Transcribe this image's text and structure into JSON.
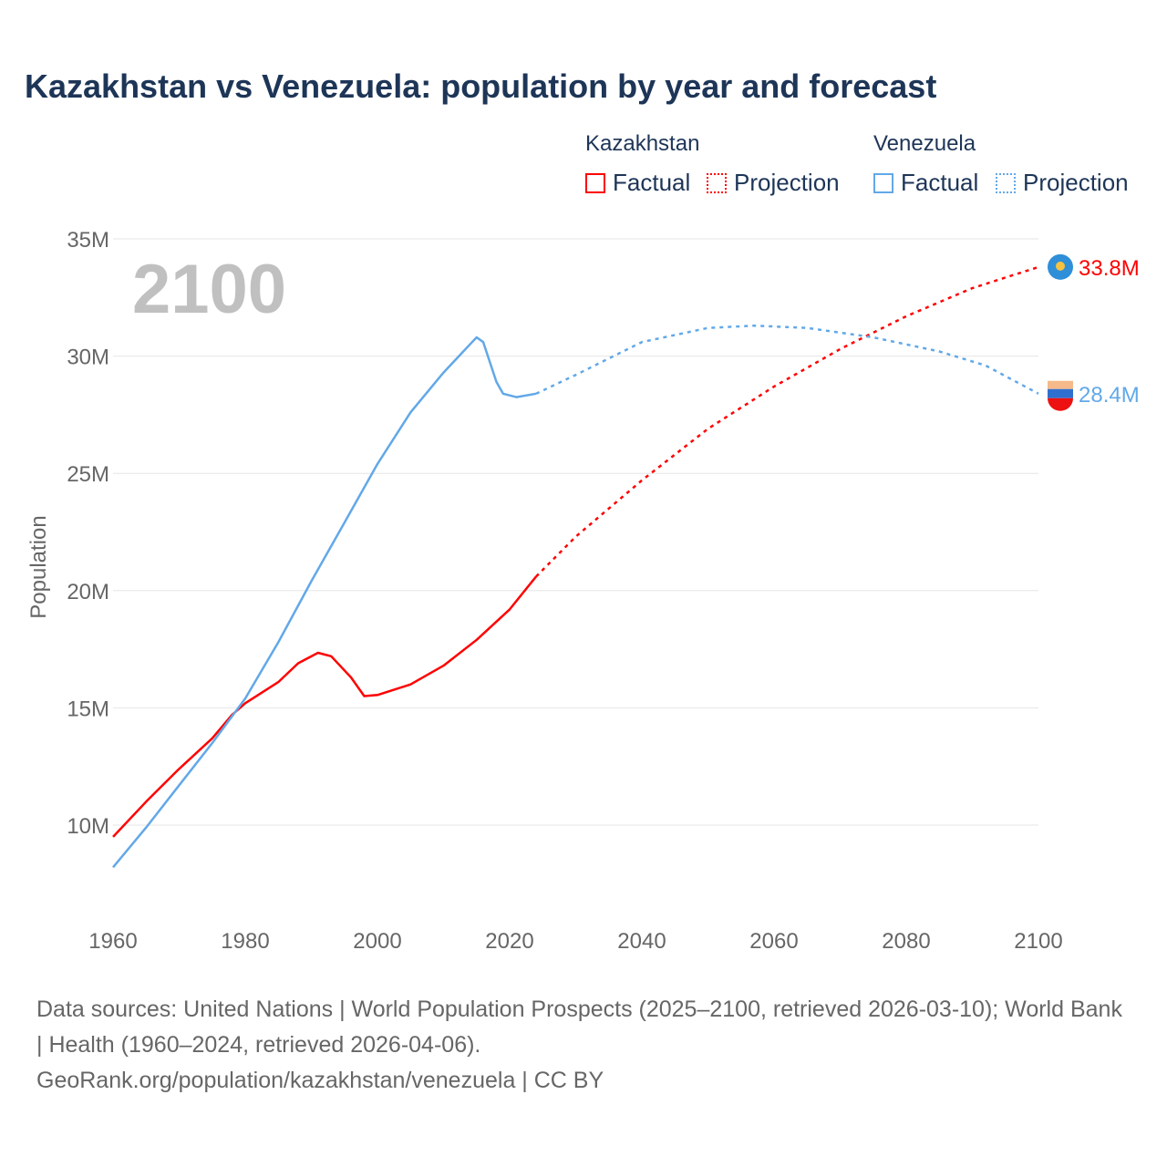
{
  "title": "Kazakhstan vs Venezuela: population by year and forecast",
  "legend": {
    "groups": [
      {
        "name": "Kazakhstan",
        "color": "#ff0000",
        "factual": "Factual",
        "projection": "Projection"
      },
      {
        "name": "Venezuela",
        "color": "#62a8e8",
        "factual": "Factual",
        "projection": "Projection"
      }
    ]
  },
  "year_overlay": "2100",
  "footer": {
    "sources": "Data sources: United Nations | World Population Prospects (2025–2100, retrieved 2026-03-10); World Bank | Health (1960–2024, retrieved 2026-04-06).",
    "link": "GeoRank.org/population/kazakhstan/venezuela | CC BY"
  },
  "chart_data": {
    "type": "line",
    "ylabel": "Population",
    "xlim": [
      1960,
      2100
    ],
    "ylim": [
      7,
      35
    ],
    "yticks": [
      {
        "v": 10,
        "label": "10M"
      },
      {
        "v": 15,
        "label": "15M"
      },
      {
        "v": 20,
        "label": "20M"
      },
      {
        "v": 25,
        "label": "25M"
      },
      {
        "v": 30,
        "label": "30M"
      },
      {
        "v": 35,
        "label": "35M"
      }
    ],
    "xticks": [
      1960,
      1980,
      2000,
      2020,
      2040,
      2060,
      2080,
      2100
    ],
    "series": [
      {
        "name": "Kazakhstan",
        "color": "#ff0000",
        "end_label": "33.8M",
        "factual": [
          [
            1960,
            9.5
          ],
          [
            1965,
            11.0
          ],
          [
            1970,
            12.4
          ],
          [
            1975,
            13.7
          ],
          [
            1978,
            14.7
          ],
          [
            1980,
            15.2
          ],
          [
            1985,
            16.1
          ],
          [
            1988,
            16.9
          ],
          [
            1991,
            17.35
          ],
          [
            1993,
            17.2
          ],
          [
            1996,
            16.3
          ],
          [
            1998,
            15.5
          ],
          [
            2000,
            15.55
          ],
          [
            2005,
            16.0
          ],
          [
            2010,
            16.8
          ],
          [
            2015,
            17.9
          ],
          [
            2020,
            19.2
          ],
          [
            2024,
            20.6
          ]
        ],
        "projection": [
          [
            2024,
            20.6
          ],
          [
            2030,
            22.3
          ],
          [
            2040,
            24.7
          ],
          [
            2050,
            26.9
          ],
          [
            2060,
            28.7
          ],
          [
            2070,
            30.3
          ],
          [
            2080,
            31.7
          ],
          [
            2090,
            32.9
          ],
          [
            2100,
            33.8
          ]
        ]
      },
      {
        "name": "Venezuela",
        "color": "#62a8e8",
        "end_label": "28.4M",
        "factual": [
          [
            1960,
            8.2
          ],
          [
            1965,
            9.9
          ],
          [
            1970,
            11.7
          ],
          [
            1975,
            13.5
          ],
          [
            1980,
            15.4
          ],
          [
            1985,
            17.8
          ],
          [
            1990,
            20.4
          ],
          [
            1995,
            22.9
          ],
          [
            2000,
            25.4
          ],
          [
            2005,
            27.6
          ],
          [
            2010,
            29.3
          ],
          [
            2014,
            30.5
          ],
          [
            2015,
            30.8
          ],
          [
            2016,
            30.6
          ],
          [
            2018,
            28.9
          ],
          [
            2019,
            28.4
          ],
          [
            2021,
            28.25
          ],
          [
            2024,
            28.4
          ]
        ],
        "projection": [
          [
            2024,
            28.4
          ],
          [
            2030,
            29.2
          ],
          [
            2040,
            30.6
          ],
          [
            2050,
            31.2
          ],
          [
            2057,
            31.3
          ],
          [
            2065,
            31.2
          ],
          [
            2075,
            30.8
          ],
          [
            2085,
            30.2
          ],
          [
            2092,
            29.6
          ],
          [
            2100,
            28.4
          ]
        ]
      }
    ]
  }
}
